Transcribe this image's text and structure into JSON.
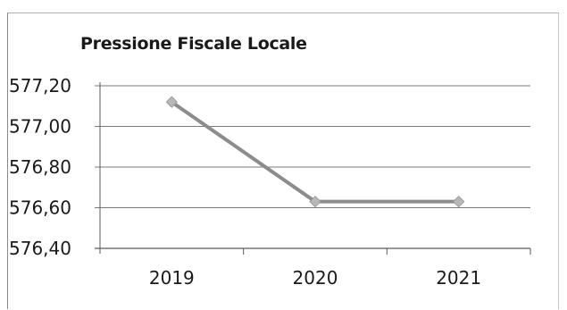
{
  "chart_data": {
    "type": "line",
    "title": "Pressione Fiscale Locale",
    "categories": [
      "2019",
      "2020",
      "2021"
    ],
    "series": [
      {
        "values": [
          577.12,
          576.63,
          576.63
        ]
      }
    ],
    "ylim": [
      576.4,
      577.2
    ],
    "yticks": [
      "576,40",
      "576,60",
      "576,80",
      "577,00",
      "577,20"
    ],
    "grid": true,
    "colors": {
      "line": "#8c8c8c",
      "marker": "#b8b8b8",
      "grid": "#7a7a7a"
    }
  }
}
